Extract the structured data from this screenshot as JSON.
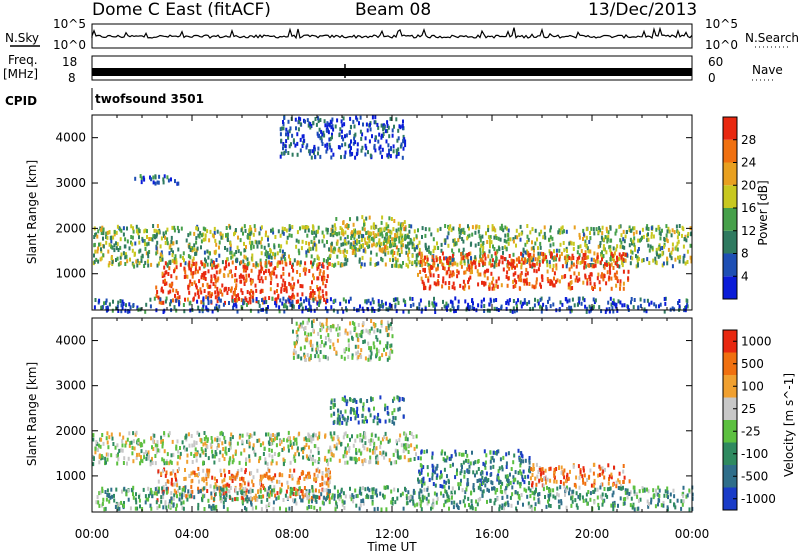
{
  "header": {
    "station": "Dome C East (fitACF)",
    "beam": "Beam 08",
    "date": "13/Dec/2013"
  },
  "top_strips": {
    "nsky_label": "N.Sky",
    "nsky_ticks": [
      "10^5",
      "10^0"
    ],
    "nsearch_label": "N.Search",
    "nsearch_ticks": [
      "10^5",
      "10^0"
    ],
    "freq_label": "Freq.",
    "freq_unit": "[MHz]",
    "freq_ticks": [
      "18",
      "8"
    ],
    "nave_label": "Nave",
    "nave_ticks": [
      "60",
      "0"
    ],
    "cpid_label": "CPID",
    "cpid_value": "twofsound 3501"
  },
  "chart_data": [
    {
      "type": "heatmap",
      "title": "",
      "xlabel": "",
      "ylabel": "Slant Range [km]",
      "x_ticks": [
        "00:00",
        "04:00",
        "08:00",
        "12:00",
        "16:00",
        "20:00",
        "00:00"
      ],
      "y_ticks": [
        "1000",
        "2000",
        "3000",
        "4000"
      ],
      "xlim": [
        0,
        24
      ],
      "ylim": [
        200,
        4500
      ],
      "colorbar": {
        "label": "Power [dB]",
        "ticks": [
          "4",
          "8",
          "12",
          "16",
          "20",
          "24",
          "28"
        ],
        "colors": [
          "#0a1cd8",
          "#1e4fb4",
          "#2f7a60",
          "#46a04a",
          "#c8c820",
          "#e8a020",
          "#f07010",
          "#e82810"
        ]
      },
      "scatter_regions": [
        {
          "t0": 0.0,
          "t1": 24.0,
          "r0": 1200,
          "r1": 2100,
          "level": 0.45
        },
        {
          "t0": 2.5,
          "t1": 9.5,
          "r0": 400,
          "r1": 1300,
          "level": 0.95
        },
        {
          "t0": 13.0,
          "t1": 21.5,
          "r0": 700,
          "r1": 1500,
          "level": 0.92
        },
        {
          "t0": 9.5,
          "t1": 12.5,
          "r0": 1500,
          "r1": 2300,
          "level": 0.55
        },
        {
          "t0": 7.5,
          "t1": 12.5,
          "r0": 3600,
          "r1": 4500,
          "level": 0.15
        },
        {
          "t0": 0.0,
          "t1": 24.0,
          "r0": 200,
          "r1": 500,
          "level": 0.2
        },
        {
          "t0": 1.5,
          "t1": 3.5,
          "r0": 3000,
          "r1": 3200,
          "level": 0.2
        }
      ]
    },
    {
      "type": "heatmap",
      "title": "",
      "xlabel": "Time UT",
      "ylabel": "Slant Range [km]",
      "x_ticks": [
        "00:00",
        "04:00",
        "08:00",
        "12:00",
        "16:00",
        "20:00",
        "00:00"
      ],
      "y_ticks": [
        "1000",
        "2000",
        "3000",
        "4000"
      ],
      "xlim": [
        0,
        24
      ],
      "ylim": [
        200,
        4500
      ],
      "colorbar": {
        "label": "Velocity [m s^-1]",
        "ticks": [
          "1000",
          "500",
          "100",
          "25",
          "-25",
          "-100",
          "-500",
          "-1000"
        ],
        "colors": [
          "#1a3cc8",
          "#2f6e8a",
          "#2f8a60",
          "#5cc040",
          "#c8c8c8",
          "#f0a030",
          "#f07010",
          "#e82810"
        ]
      },
      "scatter_regions": [
        {
          "t0": 0.0,
          "t1": 13.0,
          "r0": 1300,
          "r1": 2000,
          "level": 0.5
        },
        {
          "t0": 2.5,
          "t1": 9.5,
          "r0": 500,
          "r1": 1200,
          "level": 0.75
        },
        {
          "t0": 13.0,
          "t1": 17.5,
          "r0": 800,
          "r1": 1600,
          "level": 0.25
        },
        {
          "t0": 17.5,
          "t1": 21.5,
          "r0": 800,
          "r1": 1300,
          "level": 0.75
        },
        {
          "t0": 0.0,
          "t1": 24.0,
          "r0": 300,
          "r1": 800,
          "level": 0.35
        },
        {
          "t0": 9.5,
          "t1": 12.5,
          "r0": 2200,
          "r1": 2800,
          "level": 0.25
        },
        {
          "t0": 8.0,
          "t1": 12.0,
          "r0": 3600,
          "r1": 4500,
          "level": 0.5
        }
      ]
    }
  ]
}
